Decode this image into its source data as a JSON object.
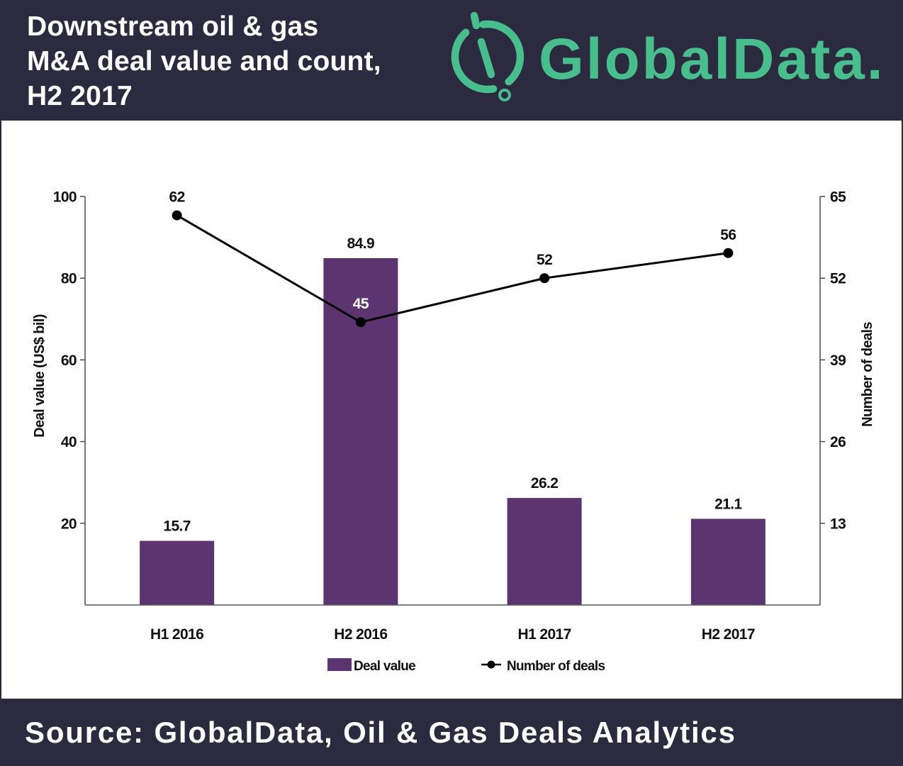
{
  "colors": {
    "header_bg": "#2b2a3f",
    "brand_green": "#46bf8d"
  },
  "logo": {
    "text": "GlobalData.",
    "icon": "globaldata-mark-icon"
  },
  "footer": {
    "source": "Source: GlobalData, Oil & Gas Deals Analytics"
  },
  "chart_data": {
    "type": "bar",
    "title_lines": [
      "Downstream oil & gas",
      "M&A deal value and count,",
      "H2 2017"
    ],
    "categories": [
      "H1 2016",
      "H2 2016",
      "H1 2017",
      "H2 2017"
    ],
    "series": [
      {
        "name": "Deal value",
        "type": "bar",
        "axis": "left",
        "color": "#5b3470",
        "values": [
          15.7,
          84.9,
          26.2,
          21.1
        ]
      },
      {
        "name": "Number of deals",
        "type": "line",
        "axis": "right",
        "color": "#000000",
        "marker": "circle",
        "values": [
          62,
          45,
          52,
          56
        ]
      }
    ],
    "ylabel": "Deal value (US$ bil)",
    "ylim": [
      0,
      100
    ],
    "yticks": [
      20,
      40,
      60,
      80,
      100
    ],
    "y2label": "Number of deals",
    "y2lim": [
      0,
      65
    ],
    "y2ticks": [
      13,
      26,
      39,
      52,
      65
    ],
    "grid": false,
    "legend": "bottom"
  }
}
